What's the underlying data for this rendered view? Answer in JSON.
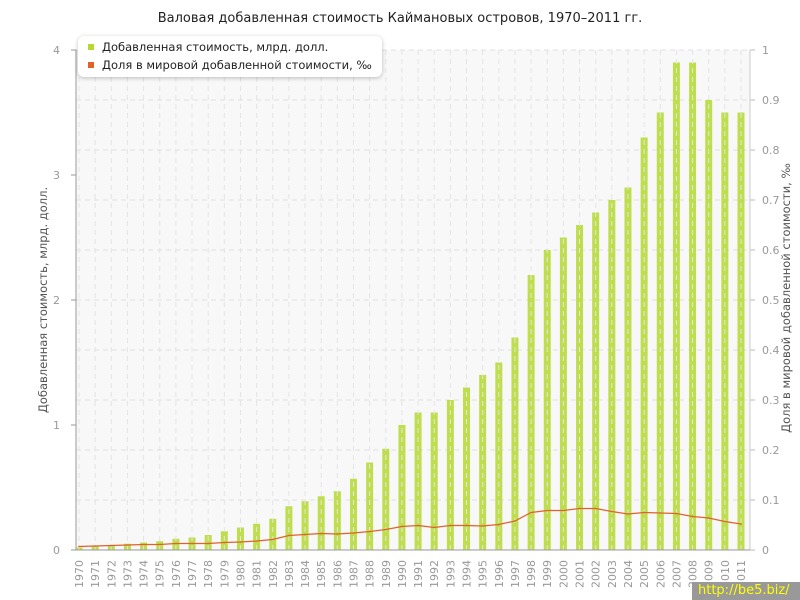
{
  "chart_data": {
    "type": "bar+line",
    "title": "Валовая добавленная стоимость Каймановых островов, 1970–2011 гг.",
    "ylabel": "Добавленная стоимость, млрд. долл.",
    "y2label": "Доля в мировой добавленной стоимости, ‰",
    "ylim": [
      0,
      4
    ],
    "y2lim": [
      0,
      1
    ],
    "yticks": [
      "0",
      "1",
      "2",
      "3",
      "4"
    ],
    "y2ticks": [
      "0",
      "0.1",
      "0.2",
      "0.3",
      "0.4",
      "0.5",
      "0.6",
      "0.7",
      "0.8",
      "0.9",
      "1"
    ],
    "grid": true,
    "legend_placement": "top-left",
    "categories": [
      "1970",
      "1971",
      "1972",
      "1973",
      "1974",
      "1975",
      "1976",
      "1977",
      "1978",
      "1979",
      "1980",
      "1981",
      "1982",
      "1983",
      "1984",
      "1985",
      "1986",
      "1987",
      "1988",
      "1989",
      "1990",
      "1991",
      "1992",
      "1993",
      "1994",
      "1995",
      "1996",
      "1997",
      "1998",
      "1999",
      "2000",
      "2001",
      "2002",
      "2003",
      "2004",
      "2005",
      "2006",
      "2007",
      "2008",
      "2009",
      "2010",
      "2011"
    ],
    "series": [
      {
        "name": "Добавленная стоимость, млрд. долл.",
        "type": "bar",
        "axis": "left",
        "color": "#b5d930",
        "values": [
          0.02,
          0.03,
          0.04,
          0.05,
          0.06,
          0.07,
          0.09,
          0.1,
          0.12,
          0.15,
          0.18,
          0.21,
          0.25,
          0.35,
          0.39,
          0.43,
          0.47,
          0.57,
          0.7,
          0.81,
          1.0,
          1.1,
          1.1,
          1.2,
          1.3,
          1.4,
          1.5,
          1.7,
          2.2,
          2.4,
          2.5,
          2.6,
          2.7,
          2.8,
          2.9,
          3.3,
          3.5,
          3.9,
          3.9,
          3.6,
          3.5,
          3.5
        ]
      },
      {
        "name": "Доля в мировой добавленной стоимости, ‰",
        "type": "line",
        "axis": "right",
        "color": "#e0622a",
        "values": [
          0.007,
          0.008,
          0.009,
          0.01,
          0.011,
          0.011,
          0.013,
          0.013,
          0.013,
          0.015,
          0.016,
          0.018,
          0.021,
          0.029,
          0.031,
          0.033,
          0.032,
          0.034,
          0.037,
          0.041,
          0.047,
          0.049,
          0.045,
          0.049,
          0.049,
          0.048,
          0.051,
          0.058,
          0.075,
          0.079,
          0.079,
          0.083,
          0.083,
          0.077,
          0.072,
          0.075,
          0.074,
          0.073,
          0.067,
          0.064,
          0.057,
          0.052
        ]
      }
    ]
  },
  "watermark": "http://be5.biz/"
}
